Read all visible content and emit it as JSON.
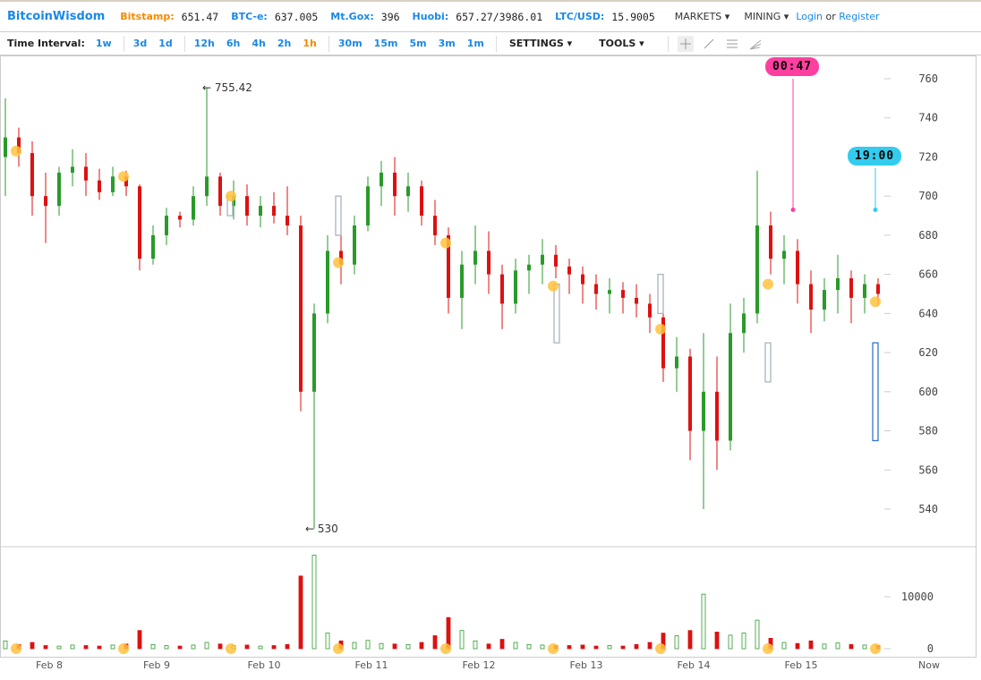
{
  "header": {
    "logo": "BitcoinWisdom",
    "tickers": [
      {
        "name": "Bitstamp:",
        "value": "651.47",
        "highlight": true
      },
      {
        "name": "BTC-e:",
        "value": "637.005"
      },
      {
        "name": "Mt.Gox:",
        "value": "396"
      },
      {
        "name": "Huobi:",
        "value": "657.27/3986.01"
      },
      {
        "name": "LTC/USD:",
        "value": "15.9005"
      }
    ],
    "menus": [
      "MARKETS",
      "MINING"
    ],
    "login": "Login",
    "or": "or",
    "register": "Register"
  },
  "toolbar": {
    "interval_label": "Time Interval:",
    "groups": [
      [
        "1w"
      ],
      [
        "3d",
        "1d"
      ],
      [
        "12h",
        "6h",
        "4h",
        "2h",
        "1h"
      ],
      [
        "30m",
        "15m",
        "5m",
        "3m",
        "1m"
      ]
    ],
    "active_interval": "1h",
    "settings": "SETTINGS",
    "tools": "TOOLS",
    "tool_icons": [
      "crosshair-icon",
      "trendline-icon",
      "horizontal-lines-icon",
      "fan-icon"
    ]
  },
  "badges": {
    "pink": {
      "text": "00:47",
      "color": "#ff3fa0",
      "price": 693
    },
    "cyan": {
      "text": "19:00",
      "color": "#33ccee",
      "price": 693
    }
  },
  "colors": {
    "up": "#2a9a2a",
    "down": "#dd1111",
    "dot": "#ffc23d"
  },
  "chart_data": {
    "type": "candlestick",
    "y_ticks": [
      760,
      740,
      720,
      700,
      680,
      660,
      640,
      620,
      600,
      580,
      560,
      540
    ],
    "ylim": [
      528,
      766
    ],
    "volume_ticks": [
      {
        "label": "10000",
        "value": 10000
      },
      {
        "label": "0",
        "value": 0
      }
    ],
    "x_labels": [
      "Feb 8",
      "Feb 9",
      "Feb 10",
      "Feb 11",
      "Feb 12",
      "Feb 13",
      "Feb 14",
      "Feb 15",
      "Now"
    ],
    "annotations": [
      {
        "text": "← 755.42",
        "value": 755.42
      },
      {
        "text": "← 530",
        "value": 530
      }
    ],
    "candles": [
      [
        720,
        750,
        700,
        730
      ],
      [
        730,
        735,
        715,
        722
      ],
      [
        722,
        728,
        690,
        700
      ],
      [
        700,
        712,
        676,
        695
      ],
      [
        695,
        715,
        690,
        712
      ],
      [
        712,
        724,
        705,
        715
      ],
      [
        715,
        722,
        700,
        708
      ],
      [
        708,
        714,
        698,
        702
      ],
      [
        702,
        715,
        700,
        710
      ],
      [
        710,
        713,
        700,
        705
      ],
      [
        705,
        706,
        662,
        668
      ],
      [
        668,
        685,
        665,
        680
      ],
      [
        680,
        694,
        675,
        690
      ],
      [
        690,
        692,
        684,
        688
      ],
      [
        688,
        705,
        685,
        700
      ],
      [
        700,
        755.42,
        695,
        710
      ],
      [
        710,
        712,
        690,
        695
      ],
      [
        695,
        708,
        688,
        700
      ],
      [
        700,
        706,
        685,
        690
      ],
      [
        690,
        700,
        684,
        695
      ],
      [
        695,
        702,
        686,
        690
      ],
      [
        690,
        705,
        680,
        685
      ],
      [
        685,
        690,
        590,
        600
      ],
      [
        600,
        645,
        530,
        640
      ],
      [
        640,
        680,
        635,
        672
      ],
      [
        672,
        680,
        655,
        665
      ],
      [
        665,
        690,
        660,
        685
      ],
      [
        685,
        710,
        682,
        705
      ],
      [
        705,
        718,
        695,
        712
      ],
      [
        712,
        720,
        690,
        700
      ],
      [
        700,
        712,
        692,
        705
      ],
      [
        705,
        708,
        685,
        690
      ],
      [
        690,
        698,
        675,
        680
      ],
      [
        680,
        684,
        640,
        648
      ],
      [
        648,
        672,
        632,
        665
      ],
      [
        665,
        685,
        655,
        672
      ],
      [
        672,
        682,
        650,
        660
      ],
      [
        660,
        665,
        632,
        645
      ],
      [
        645,
        668,
        640,
        662
      ],
      [
        662,
        670,
        650,
        665
      ],
      [
        665,
        678,
        655,
        670
      ],
      [
        670,
        675,
        658,
        664
      ],
      [
        664,
        668,
        650,
        660
      ],
      [
        660,
        664,
        645,
        655
      ],
      [
        655,
        660,
        642,
        650
      ],
      [
        650,
        658,
        640,
        652
      ],
      [
        652,
        656,
        640,
        648
      ],
      [
        648,
        655,
        638,
        645
      ],
      [
        645,
        650,
        630,
        638
      ],
      [
        638,
        642,
        605,
        612
      ],
      [
        612,
        628,
        600,
        618
      ],
      [
        618,
        622,
        565,
        580
      ],
      [
        580,
        630,
        540,
        600
      ],
      [
        600,
        618,
        560,
        575
      ],
      [
        575,
        645,
        570,
        630
      ],
      [
        630,
        648,
        620,
        640
      ],
      [
        640,
        713,
        635,
        685
      ],
      [
        685,
        692,
        660,
        668
      ],
      [
        668,
        680,
        655,
        672
      ],
      [
        672,
        678,
        645,
        655
      ],
      [
        655,
        662,
        630,
        642
      ],
      [
        642,
        658,
        636,
        652
      ],
      [
        652,
        670,
        640,
        658
      ],
      [
        658,
        662,
        635,
        648
      ],
      [
        648,
        660,
        640,
        655
      ],
      [
        655,
        658,
        644,
        650
      ]
    ],
    "volumes": [
      1500,
      800,
      1200,
      600,
      500,
      700,
      600,
      500,
      700,
      900,
      3500,
      800,
      600,
      500,
      700,
      1200,
      900,
      600,
      700,
      500,
      600,
      800,
      14000,
      18000,
      3000,
      1500,
      1200,
      1600,
      1000,
      900,
      800,
      1200,
      2500,
      6000,
      3500,
      1500,
      900,
      1800,
      1200,
      800,
      700,
      600,
      600,
      700,
      500,
      600,
      500,
      800,
      1200,
      3000,
      2500,
      3500,
      10500,
      3200,
      2600,
      3000,
      5500,
      2000,
      1200,
      1000,
      1500,
      900,
      1100,
      800,
      700,
      600
    ],
    "markers": [
      723,
      710,
      700,
      666,
      676,
      654,
      632,
      655,
      646
    ],
    "boxes": [
      [
        690,
        700
      ],
      [
        680,
        700
      ],
      [
        625,
        655
      ],
      [
        640,
        660
      ],
      [
        605,
        625
      ],
      [
        575,
        625
      ]
    ]
  }
}
